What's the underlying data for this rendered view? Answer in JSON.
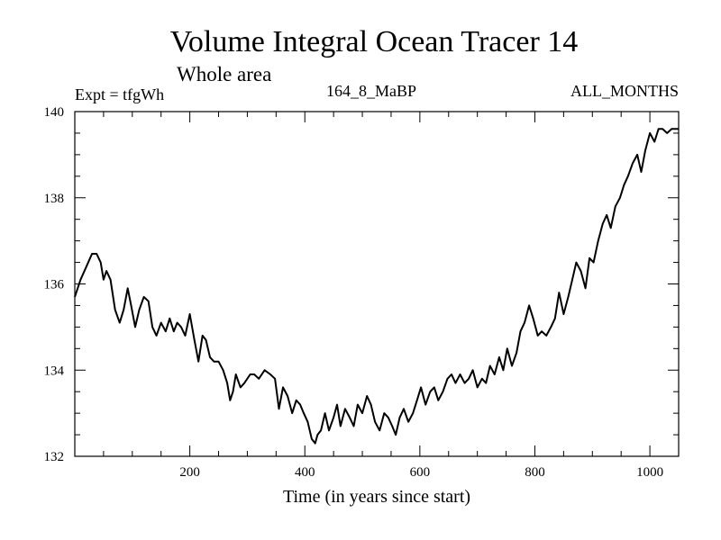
{
  "chart_data": {
    "type": "line",
    "title": "Volume Integral Ocean Tracer 14",
    "subtitle": "Whole area",
    "left_label": "Expt = tfgWh",
    "center_label": "164_8_MaBP",
    "right_label": "ALL_MONTHS",
    "xlabel": "Time (in years since start)",
    "ylabel": "",
    "xlim": [
      0,
      1050
    ],
    "ylim": [
      132,
      140
    ],
    "x_ticks": [
      200,
      400,
      600,
      800,
      1000
    ],
    "y_ticks": [
      132,
      134,
      136,
      138,
      140
    ],
    "x_tick_labels": [
      "200",
      "400",
      "600",
      "800",
      "1000"
    ],
    "y_tick_labels": [
      "132",
      "134",
      "136",
      "138",
      "140"
    ],
    "grid": false,
    "series": [
      {
        "name": "tfgWh",
        "color": "#000000",
        "x": [
          0,
          10,
          20,
          30,
          38,
          45,
          50,
          55,
          62,
          70,
          78,
          85,
          92,
          98,
          105,
          112,
          120,
          128,
          135,
          142,
          150,
          158,
          165,
          172,
          178,
          185,
          192,
          200,
          208,
          215,
          222,
          228,
          235,
          242,
          250,
          258,
          265,
          270,
          275,
          280,
          288,
          295,
          305,
          312,
          320,
          330,
          340,
          348,
          355,
          362,
          370,
          378,
          385,
          392,
          398,
          405,
          412,
          418,
          422,
          428,
          435,
          442,
          450,
          456,
          462,
          470,
          478,
          485,
          492,
          500,
          508,
          515,
          522,
          530,
          538,
          545,
          552,
          558,
          565,
          572,
          580,
          588,
          595,
          602,
          610,
          618,
          625,
          632,
          640,
          648,
          655,
          662,
          670,
          678,
          685,
          692,
          700,
          708,
          715,
          722,
          730,
          738,
          745,
          752,
          760,
          768,
          775,
          782,
          790,
          797,
          805,
          812,
          820,
          828,
          835,
          842,
          850,
          858,
          865,
          872,
          880,
          888,
          895,
          902,
          910,
          918,
          925,
          932,
          940,
          948,
          955,
          962,
          970,
          978,
          985,
          992,
          1000,
          1008,
          1015,
          1022,
          1030,
          1038,
          1045,
          1050
        ],
        "y": [
          135.7,
          136.1,
          136.4,
          136.7,
          136.7,
          136.5,
          136.1,
          136.3,
          136.1,
          135.4,
          135.1,
          135.4,
          135.9,
          135.5,
          135.0,
          135.4,
          135.7,
          135.6,
          135.0,
          134.8,
          135.1,
          134.9,
          135.2,
          134.9,
          135.1,
          135.0,
          134.8,
          135.3,
          134.7,
          134.2,
          134.8,
          134.7,
          134.3,
          134.2,
          134.2,
          134.0,
          133.7,
          133.3,
          133.5,
          133.9,
          133.6,
          133.7,
          133.9,
          133.9,
          133.8,
          134.0,
          133.9,
          133.8,
          133.1,
          133.6,
          133.4,
          133.0,
          133.3,
          133.2,
          133.0,
          132.8,
          132.4,
          132.3,
          132.5,
          132.6,
          133.0,
          132.6,
          132.9,
          133.2,
          132.7,
          133.1,
          132.9,
          132.7,
          133.2,
          133.0,
          133.4,
          133.2,
          132.8,
          132.6,
          133.0,
          132.9,
          132.7,
          132.5,
          132.9,
          133.1,
          132.8,
          133.0,
          133.3,
          133.6,
          133.2,
          133.5,
          133.6,
          133.3,
          133.5,
          133.8,
          133.9,
          133.7,
          133.9,
          133.7,
          133.8,
          134.0,
          133.6,
          133.8,
          133.7,
          134.1,
          133.9,
          134.3,
          134.0,
          134.5,
          134.1,
          134.4,
          134.9,
          135.1,
          135.5,
          135.2,
          134.8,
          134.9,
          134.8,
          135.0,
          135.2,
          135.8,
          135.3,
          135.7,
          136.1,
          136.5,
          136.3,
          135.9,
          136.6,
          136.5,
          137.0,
          137.4,
          137.6,
          137.3,
          137.8,
          138.0,
          138.3,
          138.5,
          138.8,
          139.0,
          138.6,
          139.1,
          139.5,
          139.3,
          139.6,
          139.6,
          139.5,
          139.6,
          139.6,
          139.6
        ]
      }
    ]
  }
}
